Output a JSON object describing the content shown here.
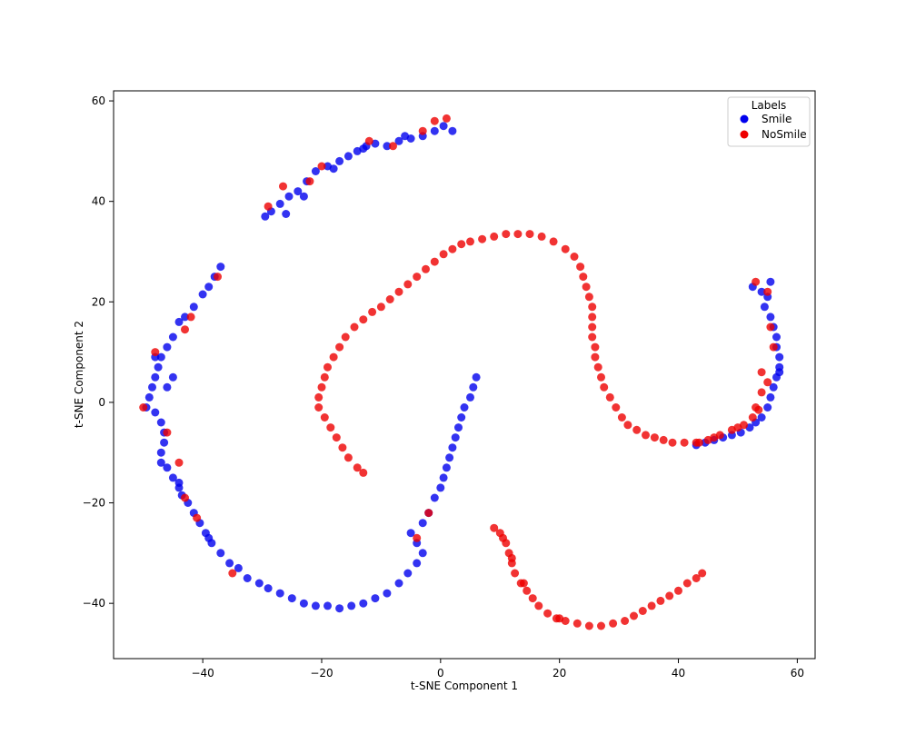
{
  "chart_data": {
    "type": "scatter",
    "title": "",
    "xlabel": "t-SNE Component 1",
    "ylabel": "t-SNE Component 2",
    "xlim": [
      -55,
      63
    ],
    "ylim": [
      -51,
      62
    ],
    "xticks": [
      -40,
      -20,
      0,
      20,
      40,
      60
    ],
    "yticks": [
      -40,
      -20,
      0,
      20,
      40,
      60
    ],
    "xtick_labels": [
      "−40",
      "−20",
      "0",
      "20",
      "40",
      "60"
    ],
    "ytick_labels": [
      "−40",
      "−20",
      "0",
      "20",
      "40",
      "60"
    ],
    "grid": false,
    "legend": {
      "title": "Labels",
      "placement": "upper right",
      "entries": [
        {
          "name": "Smile",
          "color": "#0000ee"
        },
        {
          "name": "NoSmile",
          "color": "#ee0000"
        }
      ]
    },
    "series": [
      {
        "name": "Smile",
        "color": "#0000ee",
        "points": [
          [
            -29.5,
            37
          ],
          [
            -28.5,
            38
          ],
          [
            -27,
            39.5
          ],
          [
            -25.5,
            41
          ],
          [
            -24,
            42
          ],
          [
            -22.5,
            44
          ],
          [
            -21,
            46
          ],
          [
            -19,
            47
          ],
          [
            -17,
            48
          ],
          [
            -15.5,
            49
          ],
          [
            -14,
            50
          ],
          [
            -12.5,
            51
          ],
          [
            -11,
            51.5
          ],
          [
            -9,
            51
          ],
          [
            -7,
            52
          ],
          [
            -5,
            52.5
          ],
          [
            -3,
            53
          ],
          [
            -1,
            54
          ],
          [
            0.5,
            55
          ],
          [
            2,
            54
          ],
          [
            -26,
            37.5
          ],
          [
            -23,
            41
          ],
          [
            -18,
            46.5
          ],
          [
            -13,
            50.5
          ],
          [
            -6,
            53
          ],
          [
            -37,
            27
          ],
          [
            -38,
            25
          ],
          [
            -39,
            23
          ],
          [
            -40,
            21.5
          ],
          [
            -41.5,
            19
          ],
          [
            -43,
            17
          ],
          [
            -44,
            16
          ],
          [
            -45,
            13
          ],
          [
            -46,
            11
          ],
          [
            -47,
            9
          ],
          [
            -47.5,
            7
          ],
          [
            -48,
            5
          ],
          [
            -48.5,
            3
          ],
          [
            -49,
            1
          ],
          [
            -49.5,
            -1
          ],
          [
            -48,
            -2
          ],
          [
            -47,
            -4
          ],
          [
            -46.5,
            -6
          ],
          [
            -46.5,
            -8
          ],
          [
            -47,
            -10
          ],
          [
            -47,
            -12
          ],
          [
            -46,
            -13
          ],
          [
            -45,
            -15
          ],
          [
            -44,
            -17
          ],
          [
            -43.5,
            -18.5
          ],
          [
            -42.5,
            -20
          ],
          [
            -41.5,
            -22
          ],
          [
            -40.5,
            -24
          ],
          [
            -39.5,
            -26
          ],
          [
            -38.5,
            -28
          ],
          [
            -37,
            -30
          ],
          [
            -35.5,
            -32
          ],
          [
            -34,
            -33
          ],
          [
            -32.5,
            -35
          ],
          [
            -30.5,
            -36
          ],
          [
            -29,
            -37
          ],
          [
            -27,
            -38
          ],
          [
            -25,
            -39
          ],
          [
            -23,
            -40
          ],
          [
            -21,
            -40.5
          ],
          [
            -19,
            -40.5
          ],
          [
            -17,
            -41
          ],
          [
            -15,
            -40.5
          ],
          [
            -13,
            -40
          ],
          [
            -11,
            -39
          ],
          [
            -9,
            -38
          ],
          [
            -7,
            -36
          ],
          [
            -5.5,
            -34
          ],
          [
            -4,
            -32
          ],
          [
            -3,
            -30
          ],
          [
            -4,
            -28
          ],
          [
            -5,
            -26
          ],
          [
            -3,
            -24
          ],
          [
            -2,
            -22
          ],
          [
            -1,
            -19
          ],
          [
            0,
            -17
          ],
          [
            0.5,
            -15
          ],
          [
            1,
            -13
          ],
          [
            1.5,
            -11
          ],
          [
            2,
            -9
          ],
          [
            2.5,
            -7
          ],
          [
            3,
            -5
          ],
          [
            3.5,
            -3
          ],
          [
            4,
            -1
          ],
          [
            5,
            1
          ],
          [
            5.5,
            3
          ],
          [
            6,
            5
          ],
          [
            -48,
            9
          ],
          [
            -46,
            3
          ],
          [
            -45,
            5
          ],
          [
            -44,
            -16
          ],
          [
            -39,
            -27
          ],
          [
            52.5,
            23
          ],
          [
            54,
            22
          ],
          [
            55,
            21
          ],
          [
            54.5,
            19
          ],
          [
            55.5,
            17
          ],
          [
            56,
            15
          ],
          [
            56.5,
            13
          ],
          [
            56.5,
            11
          ],
          [
            57,
            9
          ],
          [
            57,
            7
          ],
          [
            56.5,
            5
          ],
          [
            56,
            3
          ],
          [
            55.5,
            1
          ],
          [
            55,
            -1
          ],
          [
            54,
            -3
          ],
          [
            53,
            -4
          ],
          [
            52,
            -5
          ],
          [
            50.5,
            -6
          ],
          [
            49,
            -6.5
          ],
          [
            47.5,
            -7
          ],
          [
            46,
            -7.5
          ],
          [
            44.5,
            -8
          ],
          [
            43,
            -8.5
          ],
          [
            55.5,
            24
          ],
          [
            57,
            6
          ]
        ]
      },
      {
        "name": "NoSmile",
        "color": "#ee0000",
        "points": [
          [
            -26.5,
            43
          ],
          [
            -22,
            44
          ],
          [
            -20,
            47
          ],
          [
            -12,
            52
          ],
          [
            -8,
            51
          ],
          [
            -3,
            54
          ],
          [
            -1,
            56
          ],
          [
            1,
            56.5
          ],
          [
            -29,
            39
          ],
          [
            -37.5,
            25
          ],
          [
            -42,
            17
          ],
          [
            -43,
            14.5
          ],
          [
            -48,
            10
          ],
          [
            -50,
            -1
          ],
          [
            -46,
            -6
          ],
          [
            -44,
            -12
          ],
          [
            -43,
            -19
          ],
          [
            -41,
            -23
          ],
          [
            -35,
            -34
          ],
          [
            -2,
            -22
          ],
          [
            -4,
            -27
          ],
          [
            53,
            24
          ],
          [
            55,
            22
          ],
          [
            55.5,
            15
          ],
          [
            56,
            11
          ],
          [
            54,
            6
          ],
          [
            55,
            4
          ],
          [
            54,
            2
          ],
          [
            53,
            -1
          ],
          [
            50,
            -5
          ],
          [
            46,
            -7
          ],
          [
            43.5,
            -8
          ],
          [
            -13,
            -14
          ],
          [
            -14,
            -13
          ],
          [
            -15.5,
            -11
          ],
          [
            -16.5,
            -9
          ],
          [
            -17.5,
            -7
          ],
          [
            -18.5,
            -5
          ],
          [
            -19.5,
            -3
          ],
          [
            -20.5,
            -1
          ],
          [
            -20.5,
            1
          ],
          [
            -20,
            3
          ],
          [
            -19.5,
            5
          ],
          [
            -19,
            7
          ],
          [
            -18,
            9
          ],
          [
            -17,
            11
          ],
          [
            -16,
            13
          ],
          [
            -14.5,
            15
          ],
          [
            -13,
            16.5
          ],
          [
            -11.5,
            18
          ],
          [
            -10,
            19
          ],
          [
            -8.5,
            20.5
          ],
          [
            -7,
            22
          ],
          [
            -5.5,
            23.5
          ],
          [
            -4,
            25
          ],
          [
            -2.5,
            26.5
          ],
          [
            -1,
            28
          ],
          [
            0.5,
            29.5
          ],
          [
            2,
            30.5
          ],
          [
            3.5,
            31.5
          ],
          [
            5,
            32
          ],
          [
            7,
            32.5
          ],
          [
            9,
            33
          ],
          [
            11,
            33.5
          ],
          [
            13,
            33.5
          ],
          [
            15,
            33.5
          ],
          [
            17,
            33
          ],
          [
            19,
            32
          ],
          [
            21,
            30.5
          ],
          [
            22.5,
            29
          ],
          [
            23.5,
            27
          ],
          [
            24,
            25
          ],
          [
            24.5,
            23
          ],
          [
            25,
            21
          ],
          [
            25.5,
            19
          ],
          [
            25.5,
            17
          ],
          [
            25.5,
            15
          ],
          [
            25.5,
            13
          ],
          [
            26,
            11
          ],
          [
            26,
            9
          ],
          [
            26.5,
            7
          ],
          [
            27,
            5
          ],
          [
            27.5,
            3
          ],
          [
            28.5,
            1
          ],
          [
            29.5,
            -1
          ],
          [
            30.5,
            -3
          ],
          [
            31.5,
            -4.5
          ],
          [
            33,
            -5.5
          ],
          [
            34.5,
            -6.5
          ],
          [
            36,
            -7
          ],
          [
            37.5,
            -7.5
          ],
          [
            39,
            -8
          ],
          [
            41,
            -8
          ],
          [
            43,
            -8
          ],
          [
            45,
            -7.5
          ],
          [
            47,
            -6.5
          ],
          [
            49,
            -5.5
          ],
          [
            51,
            -4.5
          ],
          [
            52.5,
            -3
          ],
          [
            53.5,
            -1.5
          ],
          [
            9,
            -25
          ],
          [
            10,
            -26
          ],
          [
            11,
            -28
          ],
          [
            11.5,
            -30
          ],
          [
            12,
            -32
          ],
          [
            12.5,
            -34
          ],
          [
            13.5,
            -36
          ],
          [
            14.5,
            -37.5
          ],
          [
            15.5,
            -39
          ],
          [
            16.5,
            -40.5
          ],
          [
            18,
            -42
          ],
          [
            19.5,
            -43
          ],
          [
            21,
            -43.5
          ],
          [
            23,
            -44
          ],
          [
            25,
            -44.5
          ],
          [
            27,
            -44.5
          ],
          [
            29,
            -44
          ],
          [
            31,
            -43.5
          ],
          [
            32.5,
            -42.5
          ],
          [
            34,
            -41.5
          ],
          [
            35.5,
            -40.5
          ],
          [
            37,
            -39.5
          ],
          [
            38.5,
            -38.5
          ],
          [
            40,
            -37.5
          ],
          [
            41.5,
            -36
          ],
          [
            43,
            -35
          ],
          [
            44,
            -34
          ],
          [
            10.5,
            -27
          ],
          [
            12,
            -31
          ],
          [
            14,
            -36
          ],
          [
            20,
            -43
          ]
        ]
      }
    ]
  }
}
